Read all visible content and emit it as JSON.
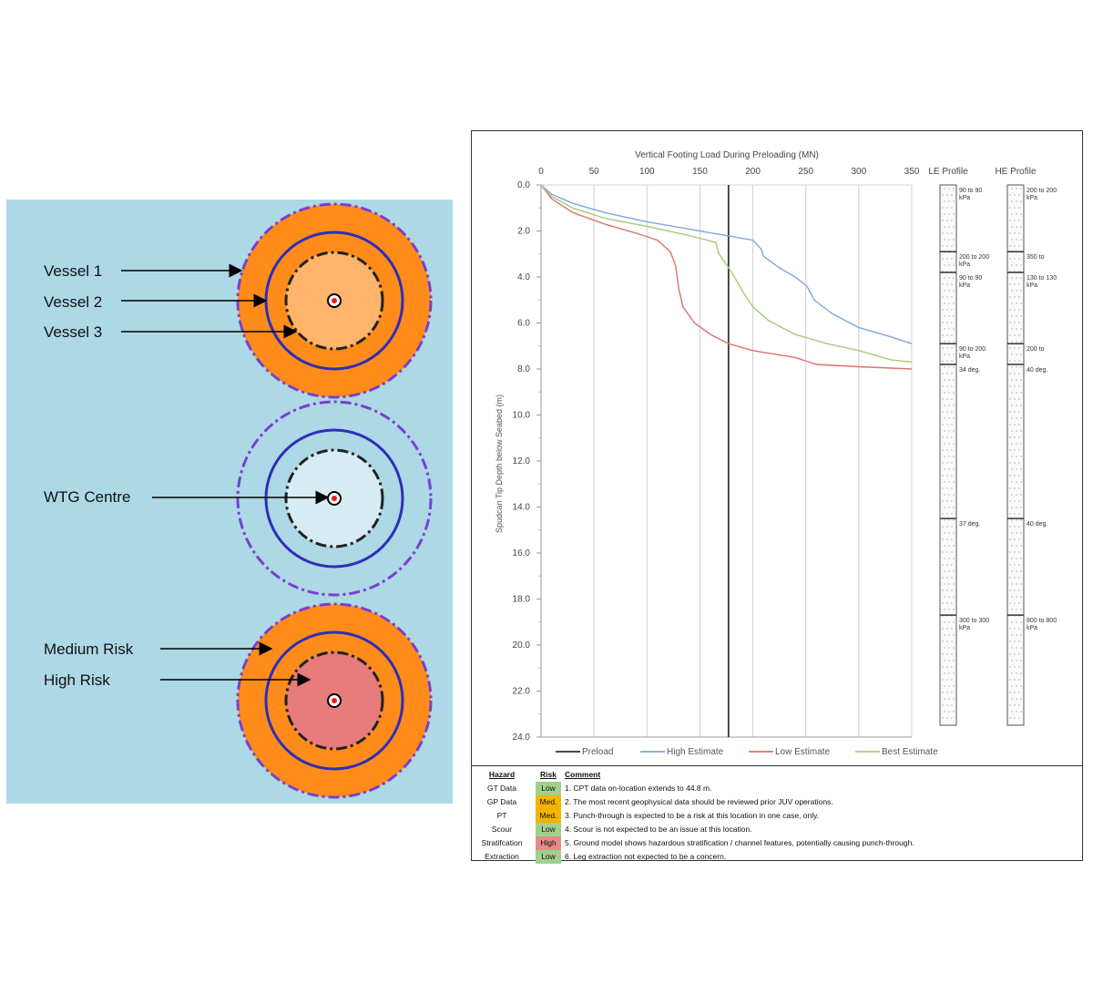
{
  "diagram": {
    "labels": {
      "vessel1": "Vessel 1",
      "vessel2": "Vessel 2",
      "vessel3": "Vessel 3",
      "wtg_centre": "WTG Centre",
      "medium_risk": "Medium Risk",
      "high_risk": "High Risk"
    },
    "colors": {
      "background": "#add8e6",
      "orange": "#ff8c1a",
      "light_orange": "#ffb36b",
      "pale_blue": "#d6ecf3",
      "pink": "#e87b7b",
      "blue_line": "#2e2eb8",
      "purple_dash": "#7a3fcf"
    }
  },
  "chart_data": {
    "type": "line",
    "title": "Vertical Footing Load During Preloading (MN)",
    "xlabel": "Vertical Footing Load During Preloading (MN)",
    "ylabel": "Spudcan Tip Depth below Seabed (m)",
    "xlim": [
      0,
      350
    ],
    "ylim": [
      0,
      24
    ],
    "x_ticks": [
      "0",
      "50",
      "100",
      "150",
      "200",
      "250",
      "300",
      "350"
    ],
    "y_ticks": [
      "0.0",
      "2.0",
      "4.0",
      "6.0",
      "8.0",
      "10.0",
      "12.0",
      "14.0",
      "16.0",
      "18.0",
      "20.0",
      "22.0",
      "24.0"
    ],
    "preload": 177,
    "series": [
      {
        "name": "Preload",
        "color": "#333333"
      },
      {
        "name": "High Estimate",
        "color": "#7fa7d9",
        "points": [
          [
            0,
            0
          ],
          [
            10,
            0.4
          ],
          [
            30,
            0.8
          ],
          [
            60,
            1.2
          ],
          [
            100,
            1.6
          ],
          [
            150,
            2.0
          ],
          [
            175,
            2.2
          ],
          [
            200,
            2.4
          ],
          [
            208,
            2.8
          ],
          [
            210,
            3.1
          ],
          [
            225,
            3.6
          ],
          [
            240,
            4.0
          ],
          [
            251,
            4.4
          ],
          [
            258,
            5.0
          ],
          [
            275,
            5.6
          ],
          [
            300,
            6.2
          ],
          [
            330,
            6.6
          ],
          [
            350,
            6.9
          ]
        ]
      },
      {
        "name": "Low Estimate",
        "color": "#d9736f",
        "points": [
          [
            0,
            0
          ],
          [
            10,
            0.6
          ],
          [
            30,
            1.2
          ],
          [
            60,
            1.7
          ],
          [
            90,
            2.1
          ],
          [
            110,
            2.4
          ],
          [
            122,
            2.9
          ],
          [
            127,
            3.5
          ],
          [
            130,
            4.5
          ],
          [
            134,
            5.3
          ],
          [
            145,
            6.0
          ],
          [
            160,
            6.5
          ],
          [
            177,
            6.9
          ],
          [
            200,
            7.2
          ],
          [
            240,
            7.5
          ],
          [
            260,
            7.8
          ],
          [
            300,
            7.9
          ],
          [
            350,
            8.0
          ]
        ]
      },
      {
        "name": "Best Estimate",
        "color": "#a9c97d",
        "points": [
          [
            0,
            0
          ],
          [
            10,
            0.5
          ],
          [
            30,
            1.0
          ],
          [
            60,
            1.45
          ],
          [
            100,
            1.8
          ],
          [
            140,
            2.2
          ],
          [
            165,
            2.5
          ],
          [
            168,
            3.0
          ],
          [
            180,
            3.8
          ],
          [
            190,
            4.6
          ],
          [
            200,
            5.3
          ],
          [
            215,
            5.9
          ],
          [
            240,
            6.5
          ],
          [
            270,
            6.9
          ],
          [
            300,
            7.2
          ],
          [
            330,
            7.6
          ],
          [
            350,
            7.7
          ]
        ]
      }
    ],
    "profiles": [
      {
        "name": "LE Profile",
        "annotations": [
          {
            "depth": 0,
            "label": "90 to 90 kPa"
          },
          {
            "depth": 2.9,
            "label": "200 to 200 kPa"
          },
          {
            "depth": 3.8,
            "label": "90 to 90 kPa"
          },
          {
            "depth": 6.9,
            "label": "90 to 200 kPa"
          },
          {
            "depth": 7.8,
            "label": "34 deg."
          },
          {
            "depth": 14.5,
            "label": "37 deg."
          },
          {
            "depth": 18.7,
            "label": "300 to 300 kPa"
          }
        ]
      },
      {
        "name": "HE Profile",
        "annotations": [
          {
            "depth": 0,
            "label": "200 to 200 kPa"
          },
          {
            "depth": 2.9,
            "label": "350 to"
          },
          {
            "depth": 3.8,
            "label": "130 to 130 kPa"
          },
          {
            "depth": 6.9,
            "label": "200 to"
          },
          {
            "depth": 7.8,
            "label": "40 deg."
          },
          {
            "depth": 14.5,
            "label": "40 deg."
          },
          {
            "depth": 18.7,
            "label": "800 to 800 kPa"
          }
        ]
      }
    ],
    "legend": [
      "Preload",
      "High Estimate",
      "Low Estimate",
      "Best Estimate"
    ]
  },
  "risk_table": {
    "headers": {
      "hazard": "Hazard",
      "risk": "Risk",
      "comment": "Comment"
    },
    "rows": [
      {
        "hazard": "GT Data",
        "risk": "Low",
        "color": "#9fd18b",
        "comment": "1. CPT data on-location extends to 44.8 m."
      },
      {
        "hazard": "GP Data",
        "risk": "Med.",
        "color": "#f5b400",
        "comment": "2. The most recent geophysical data should be reviewed prior JUV operations."
      },
      {
        "hazard": "PT",
        "risk": "Med.",
        "color": "#f5b400",
        "comment": "3. Punch-through is expected to be a risk at this location in one case, only."
      },
      {
        "hazard": "Scour",
        "risk": "Low",
        "color": "#9fd18b",
        "comment": "4. Scour is not expected to be an issue at this location."
      },
      {
        "hazard": "Stratifcation",
        "risk": "High",
        "color": "#e88a8a",
        "comment": "5. Ground model shows hazardous stratification / channel features, potentially causing punch-through."
      },
      {
        "hazard": "Extraction",
        "risk": "Low",
        "color": "#9fd18b",
        "comment": "6. Leg extraction not expected to be a concern."
      }
    ]
  }
}
